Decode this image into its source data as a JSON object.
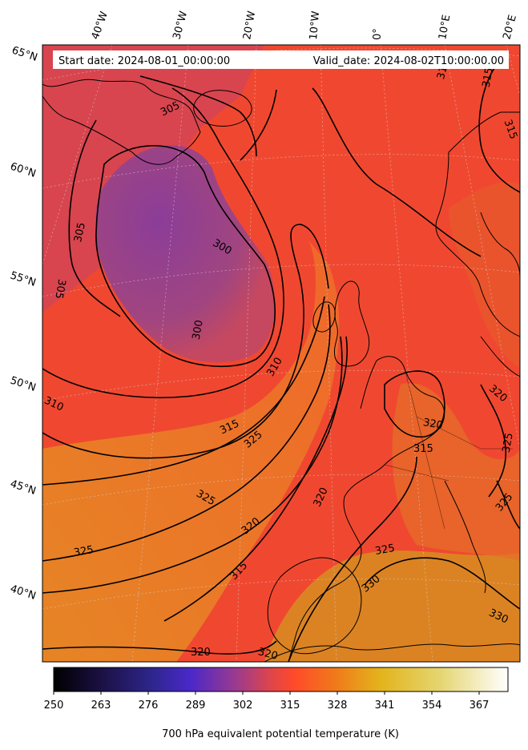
{
  "header": {
    "start_date": "Start date: 2024-08-01_00:00:00",
    "valid_date": "Valid_date: 2024-08-02T10:00:00.00"
  },
  "map": {
    "longitude_labels": [
      "40°W",
      "30°W",
      "20°W",
      "10°W",
      "0°",
      "10°E",
      "20°E"
    ],
    "latitude_labels": [
      "65°N",
      "60°N",
      "55°N",
      "50°N",
      "45°N",
      "40°N"
    ],
    "contour_labels": [
      "305",
      "300",
      "305",
      "305",
      "300",
      "310",
      "310",
      "315",
      "325",
      "325",
      "325",
      "320",
      "315",
      "320",
      "320",
      "320",
      "315",
      "320",
      "325",
      "330",
      "330",
      "325",
      "325",
      "320",
      "315",
      "315",
      "310"
    ],
    "colors": {
      "cold_core": "#8a3d92",
      "warm_sector": "#f04e2e",
      "warm_tongue": "#e0801e",
      "land": "#d68a2a",
      "contour": "#000000"
    }
  },
  "colorbar": {
    "title": "700 hPa equivalent potential temperature (K)",
    "ticks": [
      "250",
      "263",
      "276",
      "289",
      "302",
      "315",
      "328",
      "341",
      "354",
      "367"
    ],
    "colormap": "CMRmap",
    "range": [
      250,
      375
    ]
  }
}
